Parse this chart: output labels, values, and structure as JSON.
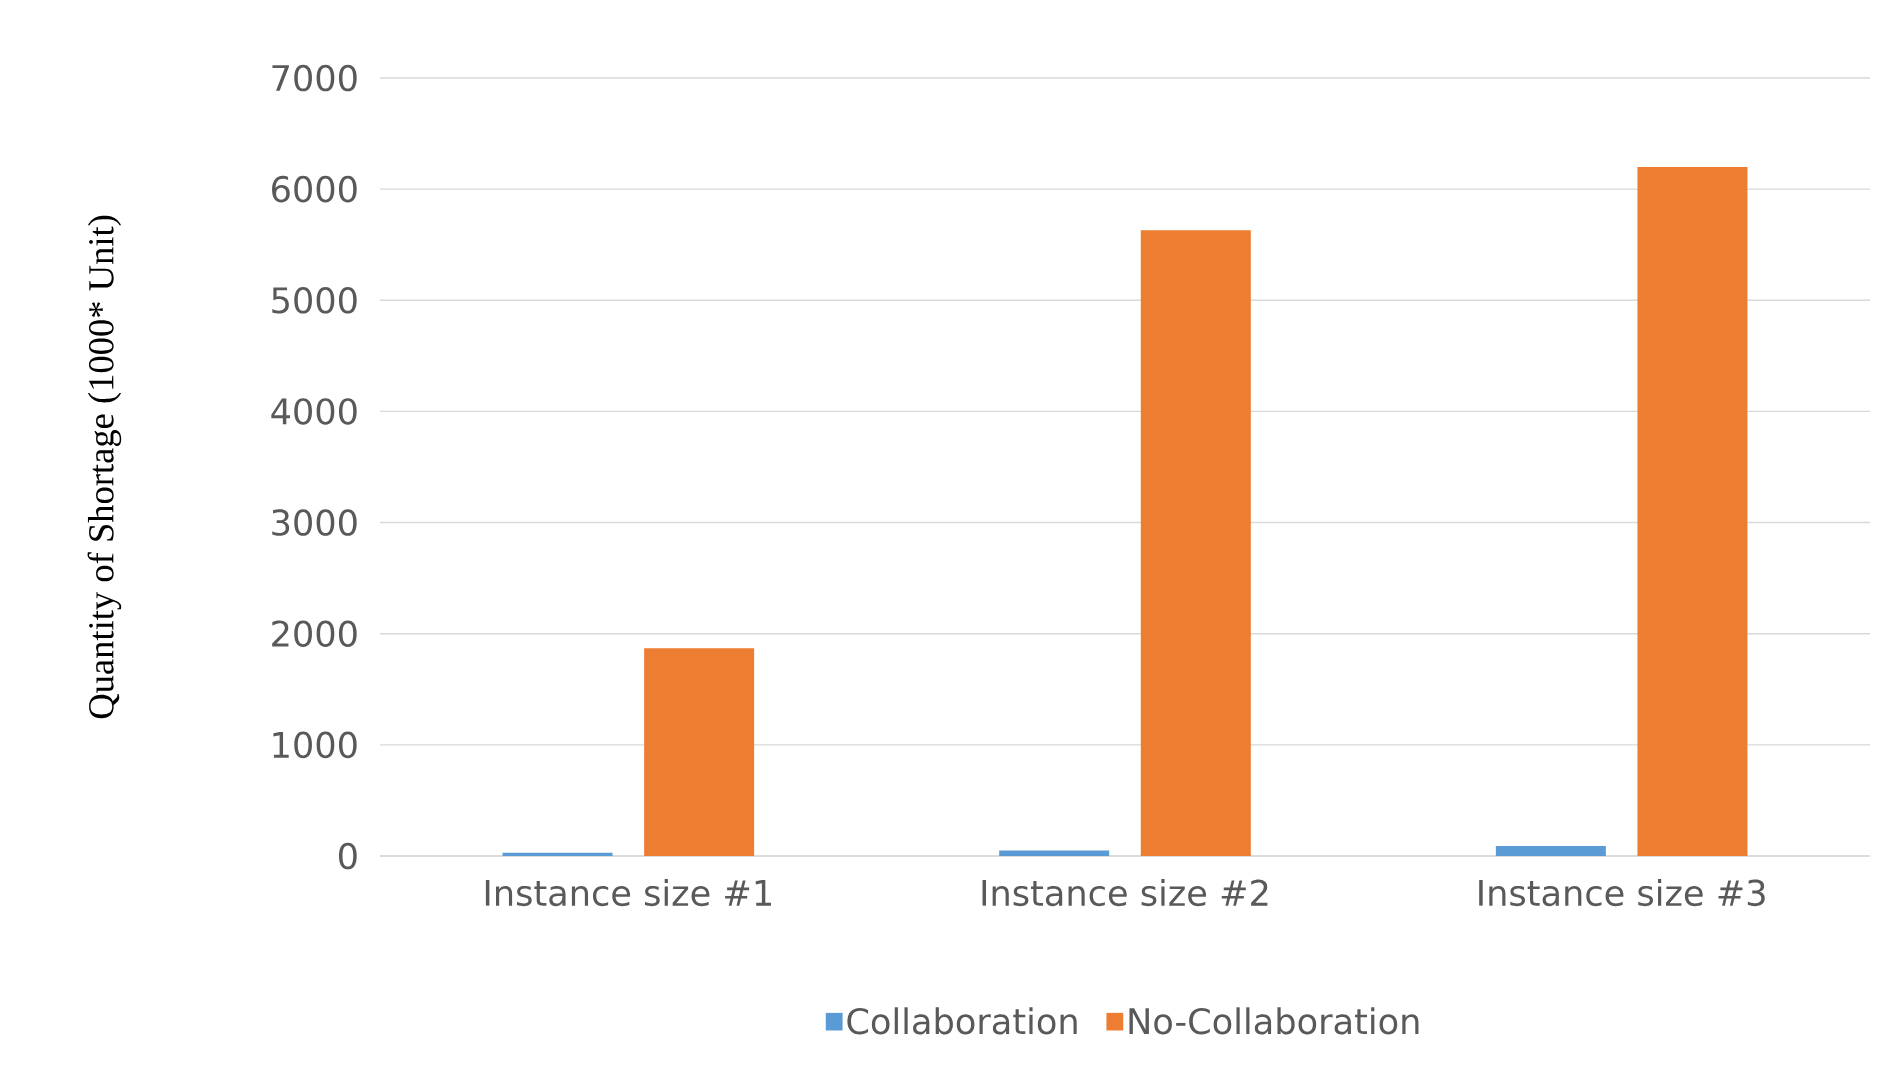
{
  "chart_data": {
    "type": "bar",
    "ylabel": "Quantity of Shortage (1000* Unit)",
    "categories": [
      "Instance size #1",
      "Instance size #2",
      "Instance size #3"
    ],
    "series": [
      {
        "name": "Collaboration",
        "color": "#5b9bd5",
        "values": [
          30,
          50,
          90
        ]
      },
      {
        "name": "No-Collaboration",
        "color": "#ed7d31",
        "values": [
          1870,
          5630,
          6200
        ]
      }
    ],
    "ylim": [
      0,
      7000
    ],
    "yticks": [
      0,
      1000,
      2000,
      3000,
      4000,
      5000,
      6000,
      7000
    ],
    "grid": "y",
    "legend": "bottom"
  }
}
